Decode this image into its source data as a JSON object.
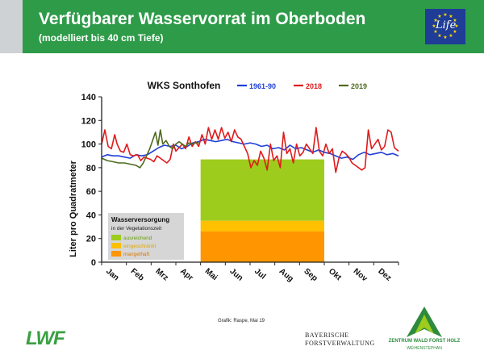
{
  "header": {
    "title": "Verfügbarer Wasservorrat im Oberboden",
    "subtitle": "(modelliert bis 40 cm Tiefe)",
    "eu_logo_text": "Life"
  },
  "chart_data": {
    "type": "line",
    "title": "WKS Sonthofen",
    "ylabel": "Liter pro Quadratmeter",
    "ylim": [
      0,
      140
    ],
    "yticks": [
      0,
      20,
      40,
      60,
      80,
      100,
      120,
      140
    ],
    "months": [
      "Jan",
      "Feb",
      "Mrz",
      "Apr",
      "Mai",
      "Jun",
      "Jul",
      "Aug",
      "Sep",
      "Okt",
      "Nov",
      "Dez"
    ],
    "grid": false,
    "legend_position": "top",
    "series": [
      {
        "name": "1961-90",
        "color": "#1f3fd6",
        "points": [
          [
            1,
            89
          ],
          [
            8,
            91
          ],
          [
            15,
            90
          ],
          [
            22,
            90
          ],
          [
            29,
            89
          ],
          [
            36,
            88
          ],
          [
            43,
            91
          ],
          [
            50,
            90
          ],
          [
            57,
            91
          ],
          [
            64,
            94
          ],
          [
            71,
            97
          ],
          [
            78,
            99
          ],
          [
            85,
            98
          ],
          [
            92,
            99
          ],
          [
            99,
            96
          ],
          [
            106,
            98
          ],
          [
            113,
            101
          ],
          [
            120,
            102
          ],
          [
            127,
            104
          ],
          [
            134,
            103
          ],
          [
            141,
            102
          ],
          [
            148,
            103
          ],
          [
            155,
            104
          ],
          [
            162,
            102
          ],
          [
            169,
            101
          ],
          [
            176,
            100
          ],
          [
            183,
            101
          ],
          [
            190,
            100
          ],
          [
            197,
            98
          ],
          [
            204,
            99
          ],
          [
            211,
            96
          ],
          [
            218,
            97
          ],
          [
            225,
            95
          ],
          [
            232,
            99
          ],
          [
            239,
            96
          ],
          [
            246,
            97
          ],
          [
            253,
            95
          ],
          [
            260,
            93
          ],
          [
            267,
            95
          ],
          [
            274,
            93
          ],
          [
            281,
            92
          ],
          [
            288,
            90
          ],
          [
            295,
            88
          ],
          [
            302,
            89
          ],
          [
            309,
            87
          ],
          [
            316,
            91
          ],
          [
            323,
            93
          ],
          [
            330,
            91
          ],
          [
            337,
            92
          ],
          [
            344,
            93
          ],
          [
            351,
            91
          ],
          [
            358,
            92
          ],
          [
            365,
            90
          ]
        ]
      },
      {
        "name": "2018",
        "color": "#e01a1a",
        "points": [
          [
            1,
            100
          ],
          [
            5,
            112
          ],
          [
            9,
            98
          ],
          [
            13,
            96
          ],
          [
            17,
            108
          ],
          [
            20,
            100
          ],
          [
            24,
            94
          ],
          [
            28,
            93
          ],
          [
            32,
            100
          ],
          [
            36,
            91
          ],
          [
            40,
            90
          ],
          [
            45,
            91
          ],
          [
            49,
            86
          ],
          [
            53,
            89
          ],
          [
            57,
            88
          ],
          [
            61,
            87
          ],
          [
            65,
            85
          ],
          [
            69,
            90
          ],
          [
            73,
            88
          ],
          [
            77,
            86
          ],
          [
            81,
            84
          ],
          [
            85,
            87
          ],
          [
            89,
            100
          ],
          [
            92,
            94
          ],
          [
            96,
            97
          ],
          [
            100,
            100
          ],
          [
            104,
            96
          ],
          [
            108,
            106
          ],
          [
            112,
            98
          ],
          [
            116,
            102
          ],
          [
            120,
            98
          ],
          [
            124,
            108
          ],
          [
            128,
            100
          ],
          [
            132,
            114
          ],
          [
            136,
            104
          ],
          [
            140,
            112
          ],
          [
            144,
            104
          ],
          [
            148,
            114
          ],
          [
            152,
            105
          ],
          [
            156,
            110
          ],
          [
            160,
            102
          ],
          [
            164,
            112
          ],
          [
            168,
            106
          ],
          [
            172,
            104
          ],
          [
            176,
            98
          ],
          [
            180,
            92
          ],
          [
            184,
            80
          ],
          [
            188,
            86
          ],
          [
            192,
            82
          ],
          [
            196,
            94
          ],
          [
            200,
            88
          ],
          [
            204,
            78
          ],
          [
            208,
            100
          ],
          [
            212,
            86
          ],
          [
            216,
            90
          ],
          [
            220,
            80
          ],
          [
            224,
            110
          ],
          [
            228,
            92
          ],
          [
            232,
            96
          ],
          [
            236,
            84
          ],
          [
            240,
            100
          ],
          [
            244,
            90
          ],
          [
            248,
            93
          ],
          [
            252,
            100
          ],
          [
            256,
            96
          ],
          [
            260,
            92
          ],
          [
            264,
            114
          ],
          [
            268,
            94
          ],
          [
            272,
            90
          ],
          [
            276,
            100
          ],
          [
            280,
            92
          ],
          [
            284,
            96
          ],
          [
            288,
            76
          ],
          [
            292,
            88
          ],
          [
            296,
            94
          ],
          [
            300,
            92
          ],
          [
            304,
            89
          ],
          [
            308,
            84
          ],
          [
            312,
            82
          ],
          [
            316,
            80
          ],
          [
            320,
            78
          ],
          [
            324,
            80
          ],
          [
            328,
            112
          ],
          [
            332,
            96
          ],
          [
            336,
            100
          ],
          [
            340,
            104
          ],
          [
            344,
            95
          ],
          [
            348,
            98
          ],
          [
            352,
            112
          ],
          [
            356,
            110
          ],
          [
            360,
            97
          ],
          [
            365,
            94
          ]
        ]
      },
      {
        "name": "2019",
        "color": "#4f6a1f",
        "points": [
          [
            1,
            88
          ],
          [
            8,
            86
          ],
          [
            15,
            85
          ],
          [
            22,
            84
          ],
          [
            29,
            84
          ],
          [
            36,
            83
          ],
          [
            43,
            82
          ],
          [
            48,
            80
          ],
          [
            52,
            84
          ],
          [
            56,
            90
          ],
          [
            60,
            96
          ],
          [
            64,
            104
          ],
          [
            67,
            110
          ],
          [
            70,
            99
          ],
          [
            73,
            112
          ],
          [
            76,
            100
          ],
          [
            80,
            103
          ],
          [
            84,
            98
          ],
          [
            88,
            96
          ],
          [
            92,
            100
          ],
          [
            96,
            102
          ],
          [
            100,
            100
          ],
          [
            104,
            98
          ],
          [
            108,
            101
          ],
          [
            112,
            100
          ],
          [
            116,
            101
          ],
          [
            120,
            101
          ]
        ]
      }
    ],
    "bar": {
      "month_start": 5,
      "month_end": 10,
      "segments": [
        {
          "name": "ausreichend",
          "from": 35,
          "to": 87,
          "color": "#9dcc1d"
        },
        {
          "name": "eingeschränkt",
          "from": 26,
          "to": 35,
          "color": "#ffc000"
        },
        {
          "name": "mangelhaft",
          "from": 0,
          "to": 26,
          "color": "#ff9500"
        }
      ]
    },
    "annotation": {
      "title": "Wasserversorgung",
      "subtitle": "in der Vegetationszeit",
      "items": [
        "ausreichend",
        "eingeschränkt",
        "mangelhaft"
      ]
    }
  },
  "footer": {
    "credit": "Grafik: Raspe, Mai 19",
    "lwf": "LWF",
    "bfv_line1": "BAYERISCHE",
    "bfv_line2": "FORSTVERWALTUNG",
    "zwfh_name": "ZENTRUM WALD FORST HOLZ",
    "zwfh_place": "WEIHENSTEPHAN"
  }
}
